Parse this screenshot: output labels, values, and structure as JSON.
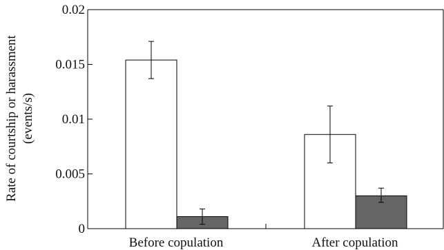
{
  "chart_data": {
    "type": "bar",
    "title": "",
    "xlabel": "",
    "ylabel_lines": [
      "Rate of courtship or harassment",
      "(events/s)"
    ],
    "categories": [
      "Before copulation",
      "After copulation"
    ],
    "ylim": [
      0,
      0.02
    ],
    "yticks": [
      0,
      0.005,
      0.01,
      0.015,
      0.02
    ],
    "ytick_labels": [
      "0",
      "0.005",
      "0.01",
      "0.015",
      "0.02"
    ],
    "grid": false,
    "legend": "none",
    "series": [
      {
        "color": "#ffffff",
        "values": [
          0.0154,
          0.0086
        ],
        "error_low": [
          0.0137,
          0.006
        ],
        "error_high": [
          0.0171,
          0.0112
        ]
      },
      {
        "color": "#666666",
        "values": [
          0.0011,
          0.003
        ],
        "error_low": [
          0.0004,
          0.0024
        ],
        "error_high": [
          0.0018,
          0.0037
        ]
      }
    ]
  }
}
